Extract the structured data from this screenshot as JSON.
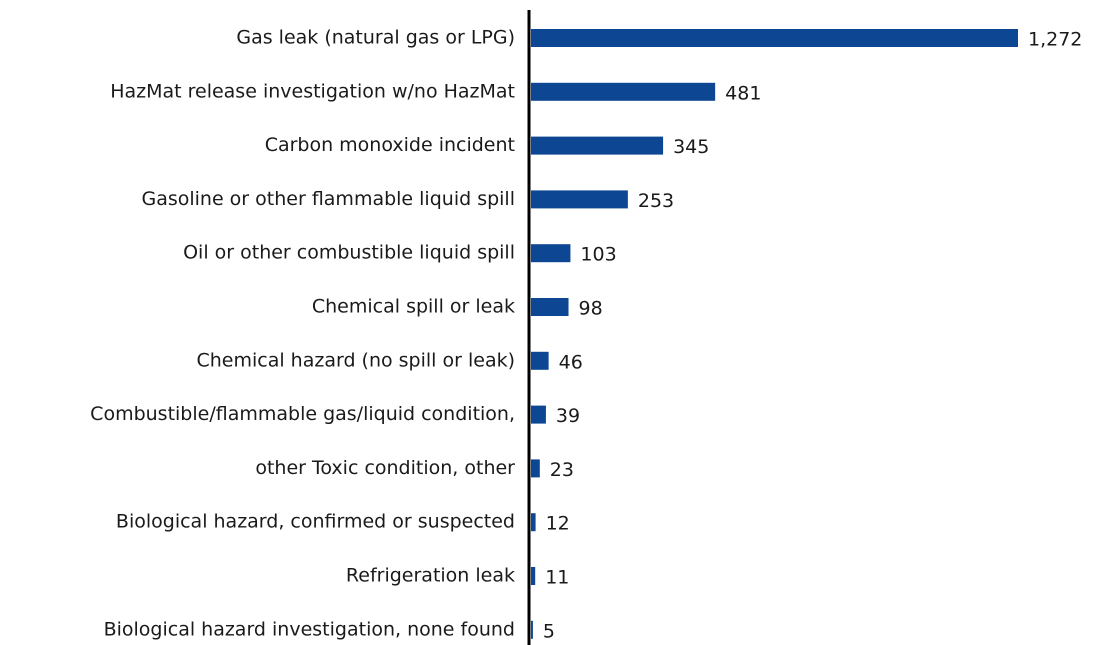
{
  "chart_data": {
    "type": "hbar",
    "categories": [
      "Gas leak (natural gas or LPG)",
      "HazMat release investigation w/no HazMat",
      "Carbon monoxide incident",
      "Gasoline or other flammable liquid spill",
      "Oil or other combustible liquid spill",
      "Chemical spill or leak",
      "Chemical hazard (no spill or leak)",
      "Combustible/flammable gas/liquid condition,",
      "other Toxic condition, other",
      "Biological hazard, confirmed or suspected",
      "Refrigeration leak",
      "Biological hazard investigation, none found"
    ],
    "values": [
      1272,
      481,
      345,
      253,
      103,
      98,
      46,
      39,
      23,
      12,
      11,
      5
    ],
    "value_labels": [
      "1,272",
      "481",
      "345",
      "253",
      "103",
      "98",
      "46",
      "39",
      "23",
      "12",
      "11",
      "5"
    ],
    "color": "#0d4793"
  }
}
